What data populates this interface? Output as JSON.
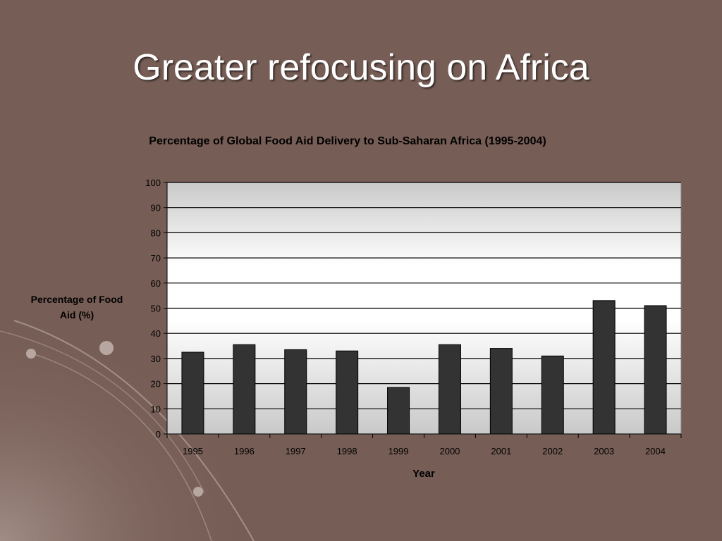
{
  "slide": {
    "title": "Greater refocusing on Africa"
  },
  "colors": {
    "background": "#765d55",
    "bar": "#333333",
    "title_text": "#ffffff"
  },
  "chart_data": {
    "type": "bar",
    "title": "Percentage of Global Food Aid Delivery to Sub-Saharan Africa (1995-2004)",
    "xlabel": "Year",
    "ylabel": "Percentage of Food Aid (%)",
    "categories": [
      "1995",
      "1996",
      "1997",
      "1998",
      "1999",
      "2000",
      "2001",
      "2002",
      "2003",
      "2004"
    ],
    "values": [
      32.5,
      35.5,
      33.5,
      33,
      18.5,
      35.5,
      34,
      31,
      53,
      51
    ],
    "ylim": [
      0,
      100
    ],
    "yticks": [
      0,
      10,
      20,
      30,
      40,
      50,
      60,
      70,
      80,
      90,
      100
    ],
    "grid": true,
    "legend": "none"
  }
}
